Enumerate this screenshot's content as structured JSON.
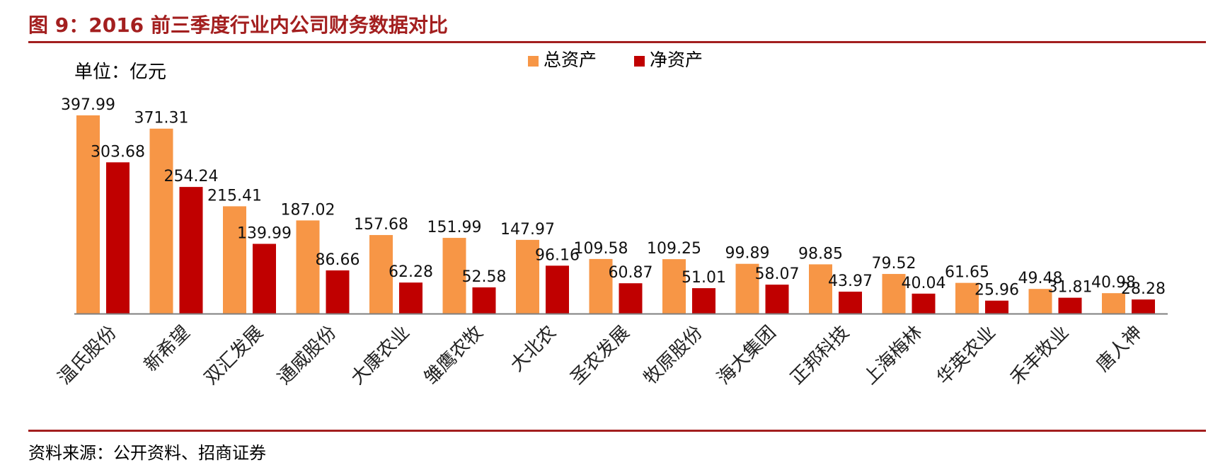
{
  "figure": {
    "title": "图 9：2016 前三季度行业内公司财务数据对比",
    "source": "资料来源：公开资料、招商证券"
  },
  "chart_data": {
    "type": "bar",
    "unit_label": "单位：亿元",
    "categories": [
      "温氏股份",
      "新希望",
      "双汇发展",
      "通威股份",
      "大康农业",
      "雏鹰农牧",
      "大北农",
      "圣农发展",
      "牧原股份",
      "海大集团",
      "正邦科技",
      "上海梅林",
      "华英农业",
      "禾丰牧业",
      "唐人神"
    ],
    "series": [
      {
        "name": "总资产",
        "color": "#f79646",
        "values": [
          397.99,
          371.31,
          215.41,
          187.02,
          157.68,
          151.99,
          147.97,
          109.58,
          109.25,
          99.89,
          98.85,
          79.52,
          61.65,
          49.48,
          40.98
        ]
      },
      {
        "name": "净资产",
        "color": "#c00000",
        "values": [
          303.68,
          254.24,
          139.99,
          86.66,
          62.28,
          52.58,
          96.16,
          60.87,
          51.01,
          58.07,
          43.97,
          40.04,
          25.96,
          31.81,
          28.28
        ]
      }
    ],
    "ylim": [
      0,
      400
    ],
    "grid": false,
    "legend_position": "top-center"
  }
}
